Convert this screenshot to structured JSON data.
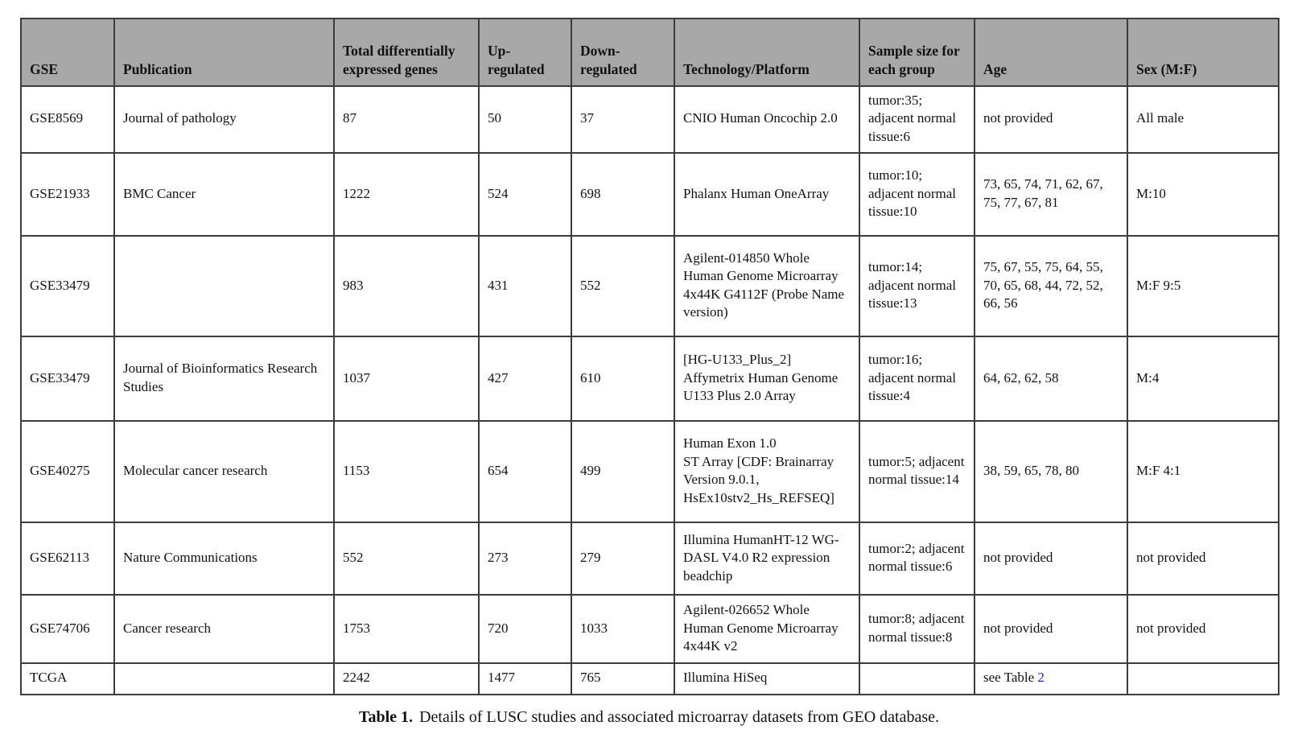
{
  "colors": {
    "header_bg": "#a8a8a8",
    "border": "#3c3c3c",
    "outer_border": "#161616",
    "link_blue": "#2222ee",
    "text": "#111111"
  },
  "table": {
    "columns": [
      "GSE",
      "Publication",
      "Total differentially expressed genes",
      "Up-regulated",
      "Down-regulated",
      "Technology/Platform",
      "Sample size for each group",
      "Age",
      "Sex (M:F)"
    ],
    "rows": [
      {
        "gse": "GSE8569",
        "publication": "Journal of pathology",
        "total": "87",
        "up": "50",
        "down": "37",
        "platform": "CNIO Human Oncochip 2.0",
        "sample": "tumor:35; adjacent normal tissue:6",
        "age": "not provided",
        "sex": "All male"
      },
      {
        "gse": "GSE21933",
        "publication": "BMC Cancer",
        "total": "1222",
        "up": "524",
        "down": "698",
        "platform": "Phalanx Human OneArray",
        "sample": "tumor:10; adjacent normal tissue:10",
        "age": "73, 65, 74, 71, 62, 67, 75, 77, 67, 81",
        "sex": "M:10"
      },
      {
        "gse": "GSE33479",
        "publication": "",
        "total": "983",
        "up": "431",
        "down": "552",
        "platform": "Agilent-014850 Whole Human Genome Microarray 4x44K G4112F (Probe Name version)",
        "sample": "tumor:14; adjacent normal tissue:13",
        "age": "75, 67, 55, 75, 64, 55, 70, 65, 68, 44, 72, 52, 66, 56",
        "sex": "M:F 9:5"
      },
      {
        "gse": "GSE33479",
        "publication": "Journal of Bioinformatics Research Studies",
        "total": "1037",
        "up": "427",
        "down": "610",
        "platform": "[HG-U133_Plus_2] Affymetrix Human Genome U133 Plus 2.0 Array",
        "sample": "tumor:16; adjacent normal tissue:4",
        "age": "64, 62, 62, 58",
        "sex": "M:4"
      },
      {
        "gse": "GSE40275",
        "publication": "Molecular cancer research",
        "total": "1153",
        "up": "654",
        "down": "499",
        "platform": "Human Exon 1.0\nST Array [CDF: Brainarray Version 9.0.1, HsEx10stv2_Hs_REFSEQ]",
        "sample": "tumor:5; adjacent normal tissue:14",
        "age": "38, 59, 65, 78, 80",
        "sex": "M:F 4:1"
      },
      {
        "gse": "GSE62113",
        "publication": "Nature Communications",
        "total": "552",
        "up": "273",
        "down": "279",
        "platform": "Illumina HumanHT-12 WG-DASL V4.0 R2 expression beadchip",
        "sample": "tumor:2; adjacent normal tissue:6",
        "age": "not provided",
        "sex": "not provided"
      },
      {
        "gse": "GSE74706",
        "publication": "Cancer research",
        "total": "1753",
        "up": "720",
        "down": "1033",
        "platform": "Agilent-026652 Whole Human Genome Microarray 4x44K v2",
        "sample": "tumor:8; adjacent normal tissue:8",
        "age": "not provided",
        "sex": "not provided"
      },
      {
        "gse": "TCGA",
        "publication": "",
        "total": "2242",
        "up": "1477",
        "down": "765",
        "platform": "Illumina HiSeq",
        "sample": "",
        "age": "see Table",
        "age_link": "2",
        "sex": ""
      }
    ]
  },
  "caption": {
    "label": "Table 1.",
    "text": "Details of LUSC studies and associated microarray datasets from GEO database."
  }
}
